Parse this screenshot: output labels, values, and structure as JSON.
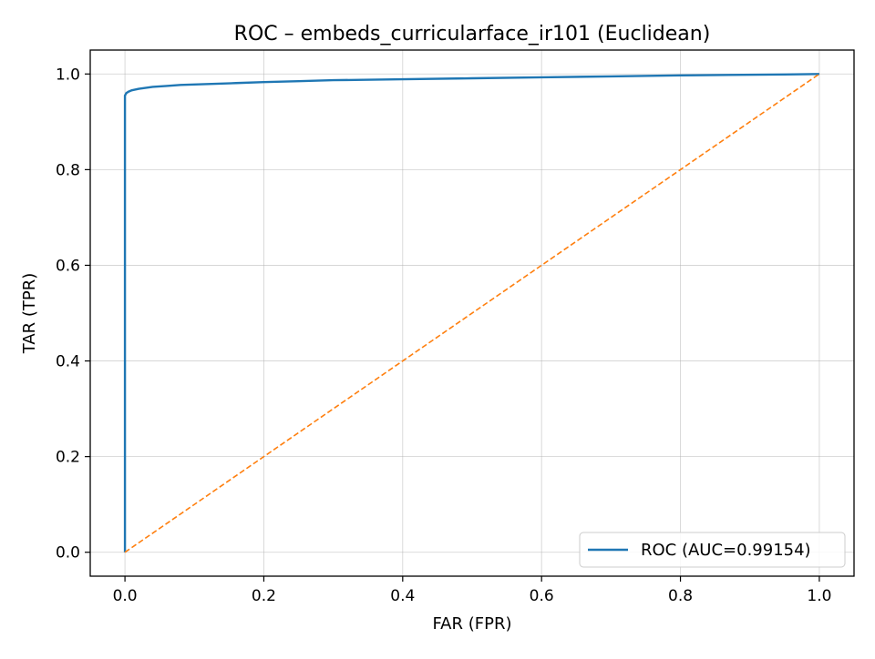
{
  "chart_data": {
    "type": "line",
    "title": "ROC – embeds_curricularface_ir101 (Euclidean)",
    "xlabel": "FAR (FPR)",
    "ylabel": "TAR (TPR)",
    "xlim": [
      -0.05,
      1.05
    ],
    "ylim": [
      -0.05,
      1.05
    ],
    "x_ticks": [
      0.0,
      0.2,
      0.4,
      0.6,
      0.8,
      1.0
    ],
    "y_ticks": [
      0.0,
      0.2,
      0.4,
      0.6,
      0.8,
      1.0
    ],
    "x_tick_labels": [
      "0.0",
      "0.2",
      "0.4",
      "0.6",
      "0.8",
      "1.0"
    ],
    "y_tick_labels": [
      "0.0",
      "0.2",
      "0.4",
      "0.6",
      "0.8",
      "1.0"
    ],
    "grid": true,
    "legend": {
      "placement": "lower-right",
      "entries": [
        "ROC (AUC=0.99154)"
      ]
    },
    "series": [
      {
        "name": "ROC (AUC=0.99154)",
        "color": "#1f77b4",
        "style": "solid",
        "x": [
          0.0,
          0.0,
          0.0,
          0.002,
          0.005,
          0.01,
          0.02,
          0.04,
          0.06,
          0.08,
          0.12,
          0.16,
          0.2,
          0.25,
          0.3,
          0.4,
          0.5,
          0.6,
          0.7,
          0.8,
          0.87,
          0.95,
          1.0
        ],
        "y": [
          0.0,
          0.93,
          0.955,
          0.96,
          0.963,
          0.966,
          0.969,
          0.973,
          0.975,
          0.977,
          0.979,
          0.981,
          0.983,
          0.985,
          0.987,
          0.989,
          0.991,
          0.993,
          0.995,
          0.997,
          0.998,
          0.999,
          1.0
        ]
      },
      {
        "name": "",
        "color": "#ff7f0e",
        "style": "dashed",
        "x": [
          0.0,
          1.0
        ],
        "y": [
          0.0,
          1.0
        ]
      }
    ]
  }
}
